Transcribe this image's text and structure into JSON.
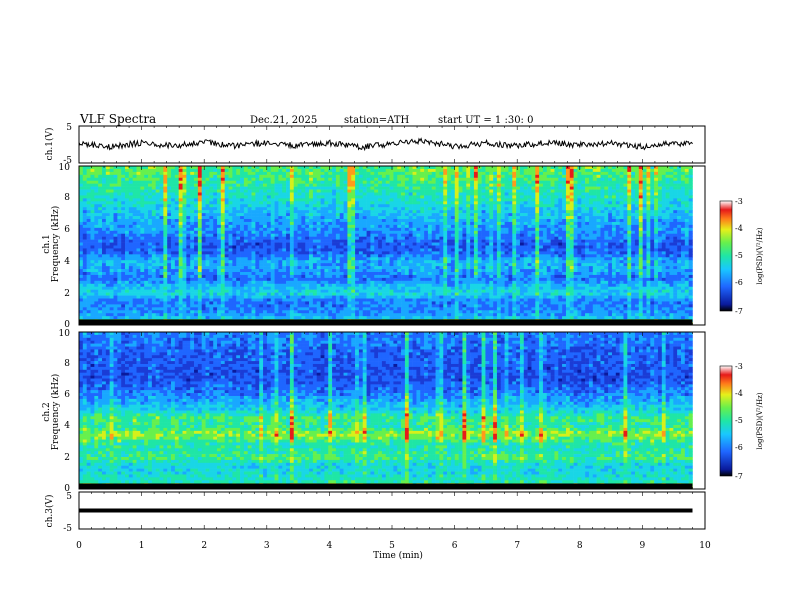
{
  "header": {
    "title": "VLF  Spectra",
    "date": "Dec.21, 2025",
    "station": "station=ATH",
    "start": "start  UT  =   1 :30: 0"
  },
  "x_axis": {
    "label": "Time  (min)",
    "range": [
      0,
      10
    ],
    "ticks": [
      "0",
      "1",
      "2",
      "3",
      "4",
      "5",
      "6",
      "7",
      "8",
      "9",
      "10"
    ]
  },
  "colors": {
    "spectrogram_levels": [
      "#0a1a9c",
      "#1a3cd6",
      "#1f66ff",
      "#19a8ff",
      "#19d6e6",
      "#1fe6a6",
      "#66f04d",
      "#d6f01a",
      "#ff9a1a",
      "#e61a1a"
    ],
    "trace": "#000000"
  },
  "chart_data": [
    {
      "type": "line",
      "panel": "ch1-waveform",
      "ylabel": "ch.1(V)",
      "ylim": [
        -5,
        5
      ],
      "yticks": [
        "5",
        "-5"
      ],
      "x": [
        0,
        0.5,
        1,
        1.5,
        2,
        2.5,
        3,
        3.5,
        4,
        4.5,
        5,
        5.5,
        6,
        6.5,
        7,
        7.5,
        8,
        8.5,
        9,
        9.5,
        9.8
      ],
      "y": [
        0.3,
        -0.6,
        0.5,
        -0.4,
        0.8,
        -0.5,
        0.6,
        -0.3,
        0.4,
        -0.7,
        0.2,
        0.9,
        -0.5,
        0.4,
        -0.4,
        0.6,
        -0.2,
        0.5,
        -0.6,
        0.3,
        0.1
      ]
    },
    {
      "type": "heatmap",
      "panel": "ch1-spectrogram",
      "ylabel_top": "ch.1",
      "ylabel": "Frequency  (kHz)",
      "ylim": [
        0,
        10
      ],
      "yticks": [
        "0",
        "2",
        "4",
        "6",
        "8",
        "10"
      ],
      "x_range_min": [
        0,
        9.8
      ],
      "colorbar": {
        "label": "log(PSD)(V²/Hz)",
        "range": [
          -7,
          -3
        ],
        "ticks": [
          "-3",
          "-4",
          "-5",
          "-6",
          "-7"
        ]
      },
      "freq_profile_khz": [
        0,
        0.5,
        1,
        1.5,
        2,
        2.5,
        3,
        3.5,
        4,
        4.5,
        5,
        5.5,
        6,
        6.5,
        7,
        7.5,
        8,
        8.5,
        9,
        9.5,
        10
      ],
      "log_psd_profile": [
        -3.6,
        -5.7,
        -5.9,
        -6.0,
        -5.2,
        -5.6,
        -6.1,
        -5.8,
        -5.7,
        -6.2,
        -6.4,
        -6.1,
        -5.9,
        -5.8,
        -5.6,
        -5.4,
        -5.2,
        -5.1,
        -4.9,
        -4.8,
        -4.7
      ]
    },
    {
      "type": "heatmap",
      "panel": "ch2-spectrogram",
      "ylabel_top": "ch.2",
      "ylabel": "Frequency  (kHz)",
      "ylim": [
        0,
        10
      ],
      "yticks": [
        "0",
        "2",
        "4",
        "6",
        "8",
        "10"
      ],
      "x_range_min": [
        0,
        9.8
      ],
      "colorbar": {
        "label": "log(PSD)(V²/Hz)",
        "range": [
          -7,
          -3
        ],
        "ticks": [
          "-3",
          "-4",
          "-5",
          "-6",
          "-7"
        ]
      },
      "freq_profile_khz": [
        0,
        0.5,
        1,
        1.5,
        2,
        2.5,
        3,
        3.5,
        4,
        4.5,
        5,
        5.5,
        6,
        6.5,
        7,
        7.5,
        8,
        8.5,
        9,
        9.5,
        10
      ],
      "log_psd_profile": [
        -3.8,
        -5.1,
        -5.2,
        -5.3,
        -4.7,
        -5.0,
        -4.9,
        -4.4,
        -5.0,
        -4.8,
        -5.4,
        -5.7,
        -6.0,
        -6.2,
        -6.4,
        -6.4,
        -6.3,
        -6.3,
        -6.2,
        -6.1,
        -6.0
      ]
    },
    {
      "type": "line",
      "panel": "ch3-waveform",
      "ylabel": "ch.3(V)",
      "ylim": [
        -5,
        5
      ],
      "yticks": [
        "5",
        "-5"
      ],
      "x": [
        0,
        9.8
      ],
      "y": [
        0,
        0
      ]
    }
  ]
}
